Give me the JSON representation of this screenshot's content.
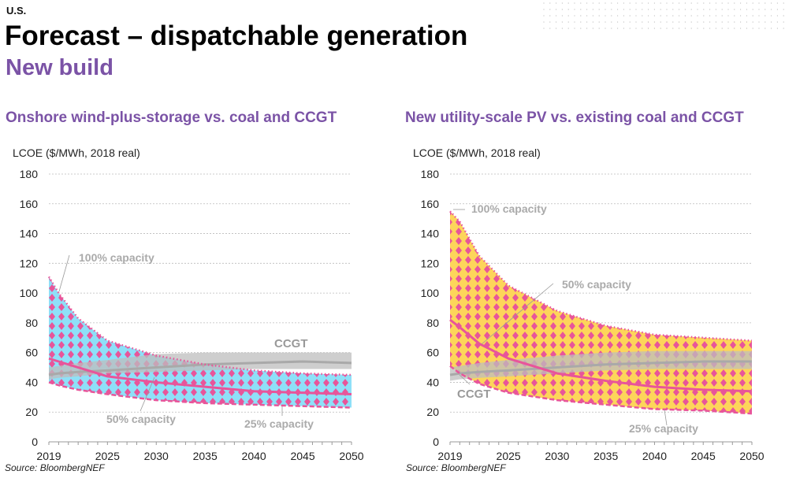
{
  "header": {
    "region": "U.S.",
    "title": "Forecast – dispatchable generation",
    "subtitle": "New build"
  },
  "colors": {
    "accent": "#7b53a6",
    "pink": "#e8559a",
    "blue": "#8ee0f8",
    "yellow": "#fdd55a",
    "ccgt": "#bdbdbd",
    "annotation": "#aaaaaa"
  },
  "chart_data": [
    {
      "type": "area",
      "title": "Onshore wind-plus-storage vs. coal and CCGT",
      "ylabel": "LCOE ($/MWh, 2018 real)",
      "xlim": [
        2019,
        2050
      ],
      "ylim": [
        0,
        180
      ],
      "yticks": [
        0,
        20,
        40,
        60,
        80,
        100,
        120,
        140,
        160,
        180
      ],
      "xticks": [
        2019,
        2025,
        2030,
        2035,
        2040,
        2045,
        2050
      ],
      "grid": true,
      "fill": "blue",
      "x": [
        2019,
        2020,
        2022,
        2025,
        2030,
        2035,
        2040,
        2045,
        2050
      ],
      "series": [
        {
          "name": "100% capacity",
          "style": "dotted",
          "values": [
            111,
            100,
            83,
            68,
            58,
            52,
            48,
            46,
            45
          ]
        },
        {
          "name": "50% capacity",
          "style": "solid",
          "values": [
            56,
            54,
            50,
            44,
            40,
            37,
            34,
            33,
            32
          ]
        },
        {
          "name": "25% capacity",
          "style": "dashed",
          "values": [
            40,
            38,
            35,
            32,
            28,
            26,
            25,
            24,
            23
          ]
        }
      ],
      "ccgt": {
        "name": "CCGT",
        "low": [
          42,
          43,
          44,
          46,
          47,
          48,
          49,
          49,
          49
        ],
        "mid": [
          45,
          46,
          47,
          48,
          50,
          52,
          53,
          54,
          53
        ],
        "high": [
          50,
          51,
          53,
          55,
          59,
          60,
          60,
          60,
          60
        ]
      },
      "source": "Source: BloombergNEF"
    },
    {
      "type": "area",
      "title": "New utility-scale PV vs. existing coal and CCGT",
      "ylabel": "LCOE ($/MWh, 2018 real)",
      "xlim": [
        2019,
        2050
      ],
      "ylim": [
        0,
        180
      ],
      "yticks": [
        0,
        20,
        40,
        60,
        80,
        100,
        120,
        140,
        160,
        180
      ],
      "xticks": [
        2019,
        2025,
        2030,
        2035,
        2040,
        2045,
        2050
      ],
      "grid": true,
      "fill": "yellow",
      "x": [
        2019,
        2020,
        2022,
        2025,
        2030,
        2035,
        2040,
        2045,
        2050
      ],
      "series": [
        {
          "name": "100% capacity",
          "style": "dotted",
          "values": [
            155,
            148,
            125,
            105,
            88,
            78,
            72,
            70,
            68
          ]
        },
        {
          "name": "50% capacity",
          "style": "solid",
          "values": [
            82,
            77,
            66,
            56,
            46,
            41,
            37,
            35,
            34
          ]
        },
        {
          "name": "25% capacity",
          "style": "dashed",
          "values": [
            51,
            46,
            39,
            33,
            28,
            25,
            22,
            21,
            19
          ]
        }
      ],
      "ccgt": {
        "name": "CCGT",
        "low": [
          41,
          42,
          43,
          44,
          46,
          48,
          49,
          49,
          49
        ],
        "mid": [
          45,
          46,
          47,
          48,
          50,
          52,
          53,
          54,
          54
        ],
        "high": [
          50,
          51,
          53,
          55,
          58,
          60,
          61,
          61,
          61
        ]
      },
      "source": "Source: BloombergNEF"
    }
  ]
}
